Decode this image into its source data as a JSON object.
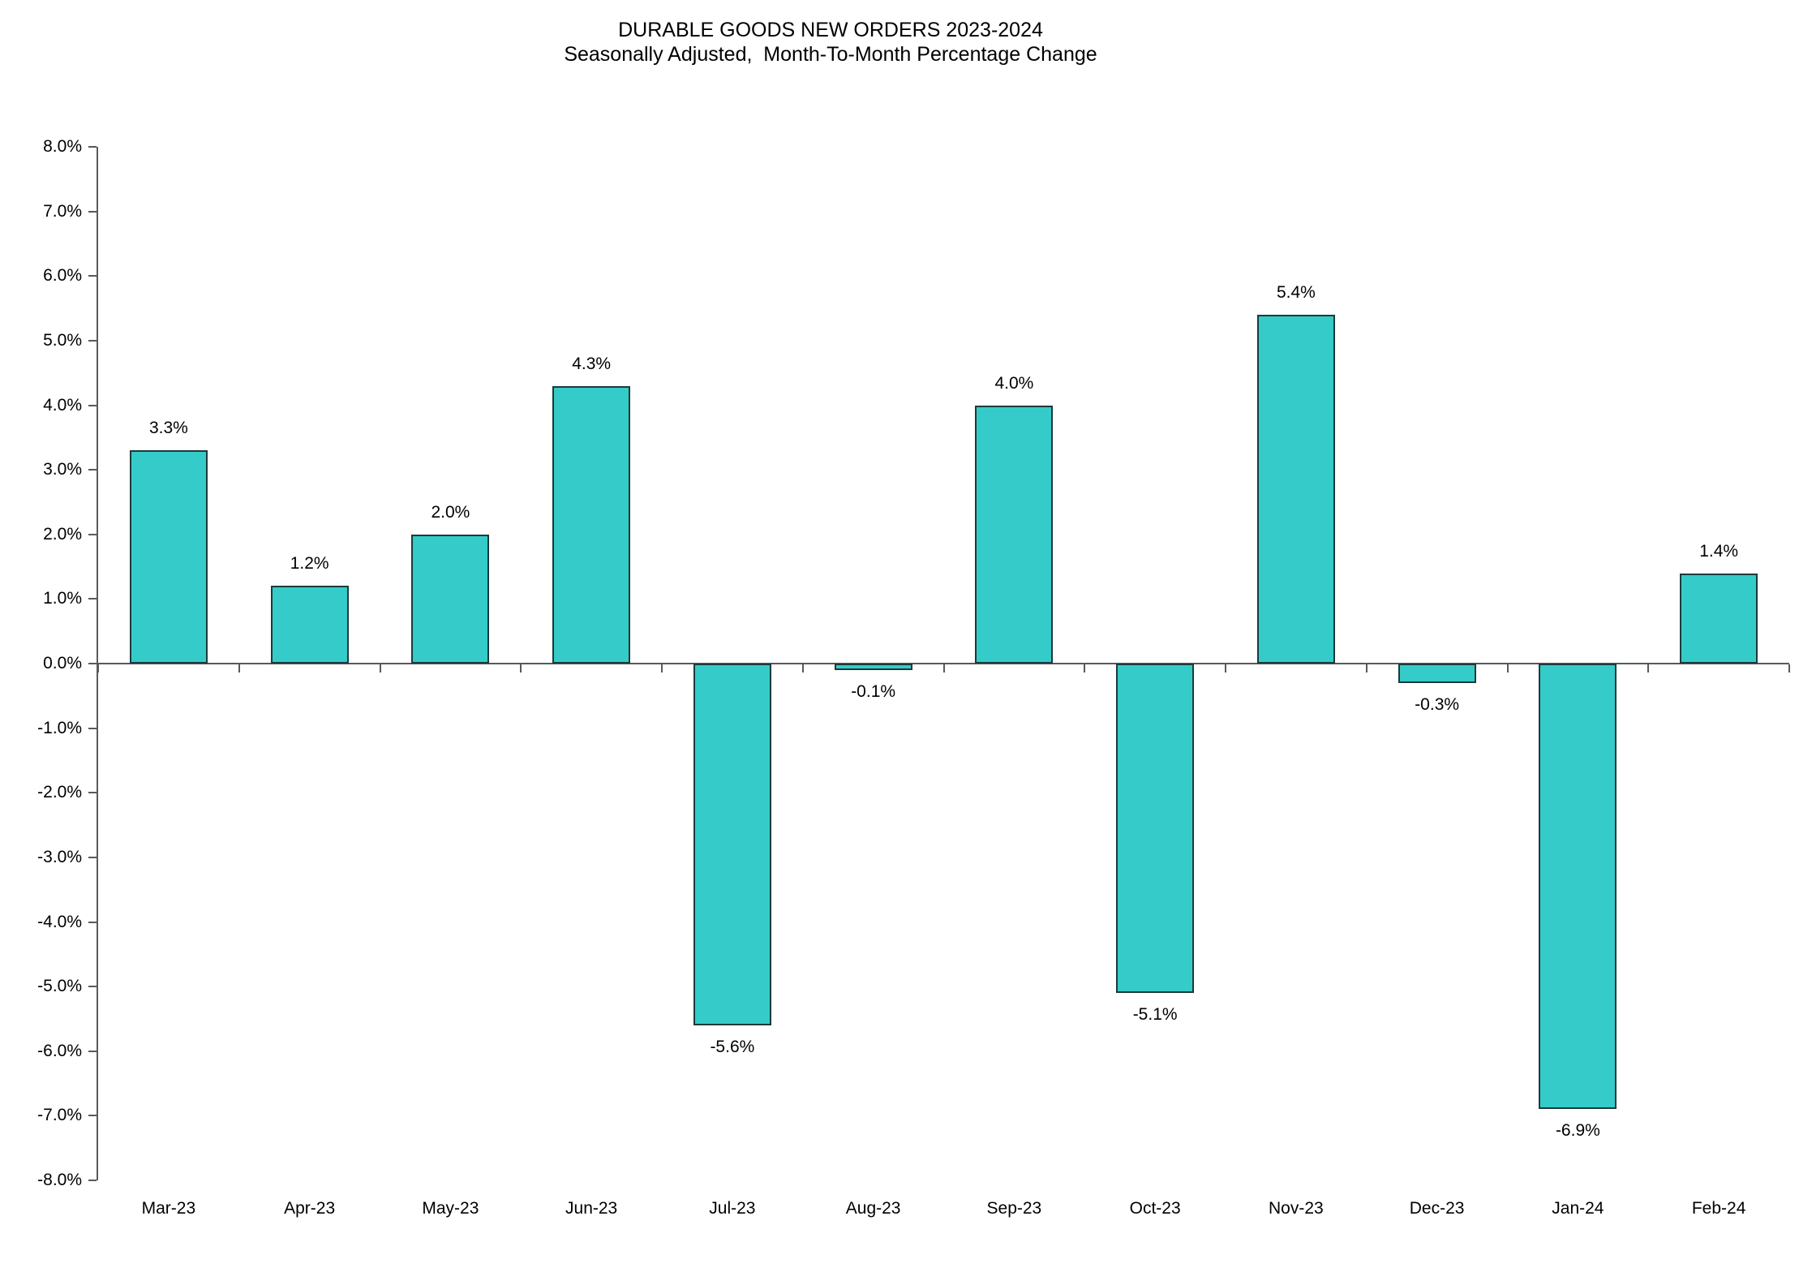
{
  "header": {
    "title": "DURABLE GOODS NEW ORDERS 2023-2024",
    "subtitle": "Seasonally Adjusted,  Month-To-Month Percentage Change"
  },
  "colors": {
    "bar_fill": "#35cbc8",
    "bar_border": "#1c3a3a",
    "axis_line": "#595959",
    "text": "#000000",
    "background": "#ffffff"
  },
  "chart_data": {
    "type": "bar",
    "title": "DURABLE GOODS NEW ORDERS 2023-2024",
    "subtitle": "Seasonally Adjusted,  Month-To-Month Percentage Change",
    "categories": [
      "Mar-23",
      "Apr-23",
      "May-23",
      "Jun-23",
      "Jul-23",
      "Aug-23",
      "Sep-23",
      "Oct-23",
      "Nov-23",
      "Dec-23",
      "Jan-24",
      "Feb-24"
    ],
    "values": [
      3.3,
      1.2,
      2.0,
      4.3,
      -5.6,
      -0.1,
      4.0,
      -5.1,
      5.4,
      -0.3,
      -6.9,
      1.4
    ],
    "data_labels": [
      "3.3%",
      "1.2%",
      "2.0%",
      "4.3%",
      "-5.6%",
      "-0.1%",
      "4.0%",
      "-5.1%",
      "5.4%",
      "-0.3%",
      "-6.9%",
      "1.4%"
    ],
    "xlabel": "",
    "ylabel": "",
    "ylim": [
      -8,
      8
    ],
    "ytick_step": 1.0,
    "ytick_labels": [
      "8.0%",
      "7.0%",
      "6.0%",
      "5.0%",
      "4.0%",
      "3.0%",
      "2.0%",
      "1.0%",
      "0.0%",
      "-1.0%",
      "-2.0%",
      "-3.0%",
      "-4.0%",
      "-5.0%",
      "-6.0%",
      "-7.0%",
      "-8.0%"
    ],
    "grid": false,
    "legend_position": "none"
  }
}
